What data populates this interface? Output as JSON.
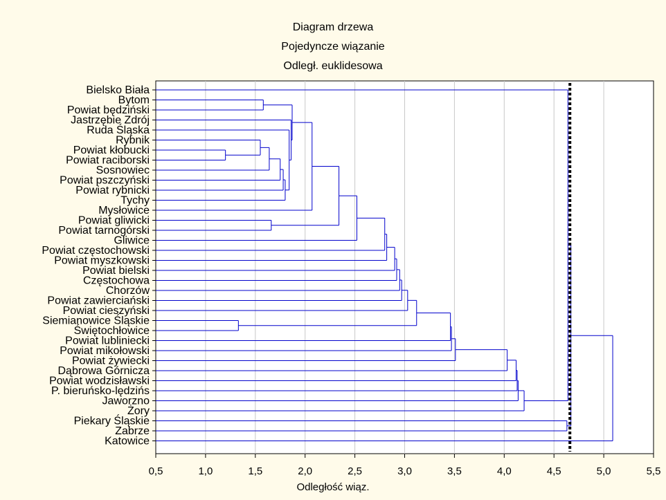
{
  "chart_data": {
    "type": "dendrogram",
    "title": "Diagram drzewa",
    "subtitle_lines": [
      "Pojedyncze wiązanie",
      "Odległ. euklidesowa"
    ],
    "xlabel": "Odległość wiąz.",
    "xlim": [
      0.5,
      5.5
    ],
    "xticks": [
      "0,5",
      "1,0",
      "1,5",
      "2,0",
      "2,5",
      "3,0",
      "3,5",
      "4,0",
      "4,5",
      "5,0",
      "5,5"
    ],
    "grid": true,
    "cut_line": 4.66,
    "leaves": [
      "Bielsko Biała",
      "Bytom",
      "Powiat będziński",
      "Jastrzębie Zdrój",
      "Ruda Śląska",
      "Rybnik",
      "Powiat kłobucki",
      "Powiat raciborski",
      "Sosnowiec",
      "Powiat pszczyński",
      "Powiat rybnicki",
      "Tychy",
      "Mysłowice",
      "Powiat gliwicki",
      "Powiat tarnogórski",
      "Gliwice",
      "Powiat częstochowski",
      "Powiat myszkowski",
      "Powiat bielski",
      "Częstochowa",
      "Chorzów",
      "Powiat zawierciański",
      "Powiat cieszyński",
      "Siemianowice Śląskie",
      "Świętochłowice",
      "Powiat lubliniecki",
      "Powiat mikołowski",
      "Powiat żywiecki",
      "Dąbrowa Górnicza",
      "Powiat wodzisławski",
      "P. bieruńsko-lędzińs",
      "Jaworzno",
      "Żory",
      "Piekary Śląskie",
      "Zabrze",
      "Katowice"
    ],
    "merges": [
      {
        "a": "L6",
        "b": "L7",
        "h": 1.2
      },
      {
        "a": "L5",
        "b": "M0",
        "h": 1.55
      },
      {
        "a": "M1",
        "b": "L8",
        "h": 1.64
      },
      {
        "a": "M2",
        "b": "L9",
        "h": 1.75
      },
      {
        "a": "M3",
        "b": "L10",
        "h": 1.78
      },
      {
        "a": "M4",
        "b": "L11",
        "h": 1.8
      },
      {
        "a": "L2",
        "b": "L1",
        "h": 1.58
      },
      {
        "a": "M5",
        "b": "L4",
        "h": 1.84
      },
      {
        "a": "M7",
        "b": "L3",
        "h": 1.86
      },
      {
        "a": "M8",
        "b": "M6",
        "h": 1.87
      },
      {
        "a": "M9",
        "b": "L12",
        "h": 2.07
      },
      {
        "a": "L14",
        "b": "L13",
        "h": 1.66
      },
      {
        "a": "M10",
        "b": "M11",
        "h": 2.34
      },
      {
        "a": "M12",
        "b": "L15",
        "h": 2.52
      },
      {
        "a": "M13",
        "b": "L16",
        "h": 2.8
      },
      {
        "a": "M14",
        "b": "L17",
        "h": 2.82
      },
      {
        "a": "M15",
        "b": "L18",
        "h": 2.9
      },
      {
        "a": "M16",
        "b": "L19",
        "h": 2.92
      },
      {
        "a": "M17",
        "b": "L20",
        "h": 2.95
      },
      {
        "a": "M18",
        "b": "L21",
        "h": 2.97
      },
      {
        "a": "M19",
        "b": "L22",
        "h": 3.03
      },
      {
        "a": "L24",
        "b": "L23",
        "h": 1.33
      },
      {
        "a": "M20",
        "b": "M21",
        "h": 3.12
      },
      {
        "a": "M22",
        "b": "L25",
        "h": 3.46
      },
      {
        "a": "M23",
        "b": "L26",
        "h": 3.47
      },
      {
        "a": "M24",
        "b": "L27",
        "h": 3.51
      },
      {
        "a": "M25",
        "b": "L28",
        "h": 4.03
      },
      {
        "a": "M26",
        "b": "L29",
        "h": 4.12
      },
      {
        "a": "M27",
        "b": "L30",
        "h": 4.13
      },
      {
        "a": "M28",
        "b": "L31",
        "h": 4.14
      },
      {
        "a": "M29",
        "b": "L32",
        "h": 4.2
      },
      {
        "a": "L34",
        "b": "L33",
        "h": 4.63
      },
      {
        "a": "M30",
        "b": "L0",
        "h": 4.64
      },
      {
        "a": "M32",
        "b": "M31",
        "h": 4.67
      },
      {
        "a": "M33",
        "b": "L35",
        "h": 5.09
      }
    ],
    "colors": {
      "tree": "#0000cc",
      "grid": "#c8c8c8",
      "cut_line": "#000000",
      "plot_bg": "#ffffff",
      "page_bg": "#fffbea"
    }
  }
}
